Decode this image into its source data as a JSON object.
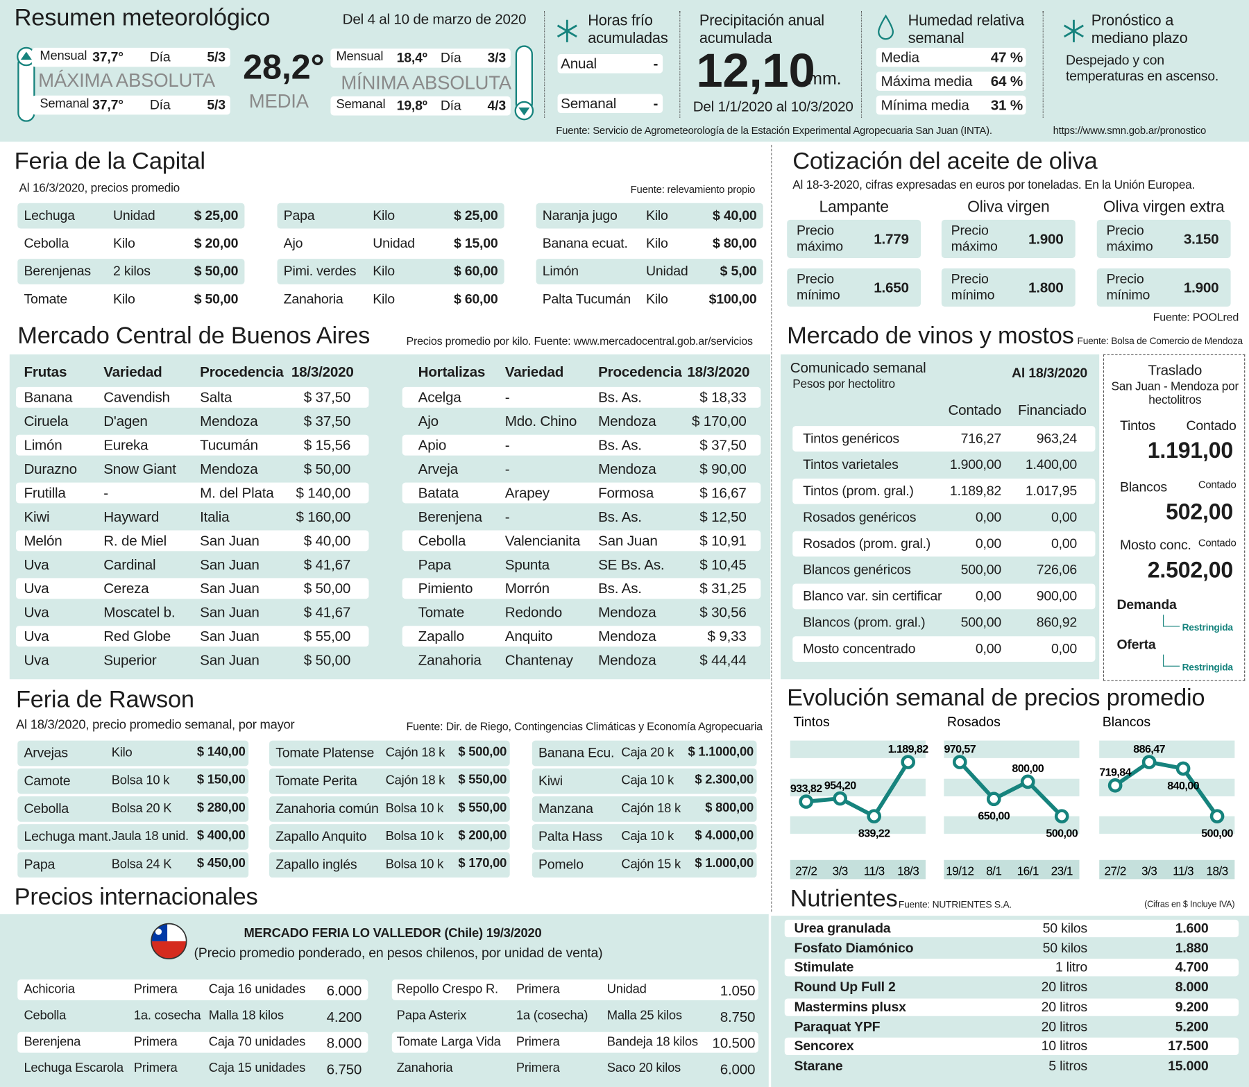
{
  "weather": {
    "title": "Resumen meteorológico",
    "period": "Del 4 al 10 de marzo de 2020",
    "maximum": {
      "label": "MÁXIMA ABSOLUTA",
      "rows": [
        [
          "Mensual",
          "37,7°",
          "Día",
          "5/3"
        ],
        [
          "Semanal",
          "37,7°",
          "Día",
          "5/3"
        ]
      ]
    },
    "mean": {
      "value": "28,2°",
      "label": "MEDIA"
    },
    "minimum": {
      "label": "MÍNIMA ABSOLUTA",
      "rows": [
        [
          "Mensual",
          "18,4º",
          "Día",
          "3/3"
        ],
        [
          "Semanal",
          "19,8º",
          "Día",
          "4/3"
        ]
      ]
    },
    "cold_hours": {
      "title": "Horas frío acumuladas",
      "rows": [
        [
          "Anual",
          "-"
        ],
        [
          "Semanal",
          "-"
        ]
      ]
    },
    "rain": {
      "title": "Precipitación anual acumulada",
      "value": "12,10",
      "unit": "mm.",
      "period": "Del 1/1/2020 al 10/3/2020"
    },
    "humidity": {
      "title": "Humedad relativa semanal",
      "rows": [
        [
          "Media",
          "47 %"
        ],
        [
          "Máxima media",
          "64 %"
        ],
        [
          "Mínima media",
          "31 %"
        ]
      ]
    },
    "forecast": {
      "title": "Pronóstico a mediano plazo",
      "text": "Despejado y con temperaturas en ascenso."
    },
    "source": "Fuente: Servicio de Agrometeorología de la Estación Experimental Agropecuaria San Juan (INTA).",
    "forecast_source": "https://www.smn.gob.ar/pronostico"
  },
  "feria_capital": {
    "title": "Feria de la Capital",
    "subtitle": "Al 16/3/2020, precios promedio",
    "source": "Fuente: relevamiento propio",
    "columns": [
      [
        [
          "Lechuga",
          "Unidad",
          "$ 25,00"
        ],
        [
          "Cebolla",
          "Kilo",
          "$ 20,00"
        ],
        [
          "Berenjenas",
          "2 kilos",
          "$ 50,00"
        ],
        [
          "Tomate",
          "Kilo",
          "$ 50,00"
        ]
      ],
      [
        [
          "Papa",
          "Kilo",
          "$ 25,00"
        ],
        [
          "Ajo",
          "Unidad",
          "$ 15,00"
        ],
        [
          "Pimi. verdes",
          "Kilo",
          "$ 60,00"
        ],
        [
          "Zanahoria",
          "Kilo",
          "$ 60,00"
        ]
      ],
      [
        [
          "Naranja jugo",
          "Kilo",
          "$ 40,00"
        ],
        [
          "Banana ecuat.",
          "Kilo",
          "$ 80,00"
        ],
        [
          "Limón",
          "Unidad",
          "$ 5,00"
        ],
        [
          "Palta Tucumán",
          "Kilo",
          "$100,00"
        ]
      ]
    ]
  },
  "olive_oil": {
    "title": "Cotización del aceite de oliva",
    "subtitle": "Al 18-3-2020, cifras expresadas en euros por toneladas. En la Unión Europea.",
    "groups": [
      {
        "name": "Lampante",
        "max_label": "Precio máximo",
        "max": "1.779",
        "min_label": "Precio mínimo",
        "min": "1.650"
      },
      {
        "name": "Oliva virgen",
        "max_label": "Precio máximo",
        "max": "1.900",
        "min_label": "Precio mínimo",
        "min": "1.800"
      },
      {
        "name": "Oliva virgen extra",
        "max_label": "Precio máximo",
        "max": "3.150",
        "min_label": "Precio mínimo",
        "min": "1.900"
      }
    ],
    "source": "Fuente: POOLred"
  },
  "mercado_central": {
    "title": "Mercado Central de Buenos Aires",
    "source": "Precios promedio por kilo. Fuente: www.mercadocentral.gob.ar/servicios",
    "fruits": {
      "header": [
        "Frutas",
        "Variedad",
        "Procedencia",
        "18/3/2020"
      ],
      "rows": [
        [
          "Banana",
          "Cavendish",
          "Salta",
          "$ 37,50"
        ],
        [
          "Ciruela",
          "D'agen",
          "Mendoza",
          "$ 37,50"
        ],
        [
          "Limón",
          "Eureka",
          "Tucumán",
          "$ 15,56"
        ],
        [
          "Durazno",
          "Snow Giant",
          "Mendoza",
          "$ 50,00"
        ],
        [
          "Frutilla",
          "-",
          "M. del Plata",
          "$ 140,00"
        ],
        [
          "Kiwi",
          "Hayward",
          "Italia",
          "$ 160,00"
        ],
        [
          "Melón",
          "R. de Miel",
          "San Juan",
          "$ 40,00"
        ],
        [
          "Uva",
          "Cardinal",
          "San Juan",
          "$ 41,67"
        ],
        [
          "Uva",
          "Cereza",
          "San Juan",
          "$ 50,00"
        ],
        [
          "Uva",
          "Moscatel b.",
          "San Juan",
          "$ 41,67"
        ],
        [
          "Uva",
          "Red Globe",
          "San Juan",
          "$ 55,00"
        ],
        [
          "Uva",
          "Superior",
          "San Juan",
          "$ 50,00"
        ]
      ]
    },
    "vegetables": {
      "header": [
        "Hortalizas",
        "Variedad",
        "Procedencia",
        "18/3/2020"
      ],
      "rows": [
        [
          "Acelga",
          "-",
          "Bs. As.",
          "$ 18,33"
        ],
        [
          "Ajo",
          "Mdo. Chino",
          "Mendoza",
          "$ 170,00"
        ],
        [
          "Apio",
          "-",
          "Bs. As.",
          "$ 37,50"
        ],
        [
          "Arveja",
          "-",
          "Mendoza",
          "$ 90,00"
        ],
        [
          "Batata",
          "Arapey",
          "Formosa",
          "$ 16,67"
        ],
        [
          "Berenjena",
          "-",
          "Bs. As.",
          "$ 12,50"
        ],
        [
          "Cebolla",
          "Valencianita",
          "San Juan",
          "$ 10,91"
        ],
        [
          "Papa",
          "Spunta",
          "SE Bs. As.",
          "$ 10,45"
        ],
        [
          "Pimiento",
          "Morrón",
          "Bs. As.",
          "$ 31,25"
        ],
        [
          "Tomate",
          "Redondo",
          "Mendoza",
          "$ 30,56"
        ],
        [
          "Zapallo",
          "Anquito",
          "Mendoza",
          "$ 9,33"
        ],
        [
          "Zanahoria",
          "Chantenay",
          "Mendoza",
          "$ 44,44"
        ]
      ]
    }
  },
  "wines": {
    "title": "Mercado de vinos y mostos",
    "source": "Fuente: Bolsa de Comercio de Mendoza",
    "table": {
      "title": "Comunicado semanal",
      "subtitle": "Pesos por hectolitro",
      "date": "Al 18/3/2020",
      "columns": [
        "Contado",
        "Financiado"
      ],
      "rows": [
        [
          "Tintos genéricos",
          "716,27",
          "963,24"
        ],
        [
          "Tintos varietales",
          "1.900,00",
          "1.400,00"
        ],
        [
          "Tintos (prom. gral.)",
          "1.189,82",
          "1.017,95"
        ],
        [
          "Rosados genéricos",
          "0,00",
          "0,00"
        ],
        [
          "Rosados (prom. gral.)",
          "0,00",
          "0,00"
        ],
        [
          "Blancos genéricos",
          "500,00",
          "726,06"
        ],
        [
          "Blanco var. sin certificar",
          "0,00",
          "900,00"
        ],
        [
          "Blancos (prom. gral.)",
          "500,00",
          "860,92"
        ],
        [
          "Mosto concentrado",
          "0,00",
          "0,00"
        ]
      ]
    },
    "transfer": {
      "title": "Traslado",
      "subtitle": "San Juan - Mendoza por hectolitros",
      "items": [
        {
          "name": "Tintos",
          "kind": "Contado",
          "value": "1.191,00"
        },
        {
          "name": "Blancos",
          "kind": "Contado",
          "value": "502,00"
        },
        {
          "name": "Mosto conc.",
          "kind": "Contado",
          "value": "2.502,00"
        }
      ],
      "demand": {
        "label": "Demanda",
        "value": "Restringida"
      },
      "offer": {
        "label": "Oferta",
        "value": "Restringida"
      }
    }
  },
  "rawson": {
    "title": "Feria de Rawson",
    "subtitle": "Al 18/3/2020, precio promedio semanal, por mayor",
    "source": "Fuente: Dir. de Riego, Contingencias Climáticas y Economía Agropecuaria",
    "columns": [
      [
        [
          "Arvejas",
          "Kilo",
          "$ 140,00"
        ],
        [
          "Camote",
          "Bolsa 10 k",
          "$ 150,00"
        ],
        [
          "Cebolla",
          "Bolsa 20 K",
          "$ 280,00"
        ],
        [
          "Lechuga mant.",
          "Jaula 18 unid.",
          "$ 400,00"
        ],
        [
          "Papa",
          "Bolsa 24 K",
          "$ 450,00"
        ]
      ],
      [
        [
          "Tomate Platense",
          "Cajón 18 k",
          "$ 500,00"
        ],
        [
          "Tomate Perita",
          "Cajón 18 k",
          "$ 550,00"
        ],
        [
          "Zanahoria común",
          "Bolsa 10 k",
          "$ 550,00"
        ],
        [
          "Zapallo Anquito",
          "Bolsa 10 k",
          "$ 200,00"
        ],
        [
          "Zapallo inglés",
          "Bolsa 10 k",
          "$ 170,00"
        ]
      ],
      [
        [
          "Banana Ecu.",
          "Caja 20 k",
          "$ 1.1000,00"
        ],
        [
          "Kiwi",
          "Caja 10 k",
          "$ 2.300,00"
        ],
        [
          "Manzana",
          "Cajón 18 k",
          "$ 800,00"
        ],
        [
          "Palta Hass",
          "Caja 10 k",
          "$ 4.000,00"
        ],
        [
          "Pomelo",
          "Cajón 15 k",
          "$ 1.000,00"
        ]
      ]
    ]
  },
  "evolution": {
    "title": "Evolución semanal de precios promedio"
  },
  "chart_data": [
    {
      "type": "line",
      "title": "Tintos",
      "color": "#16837d",
      "categories": [
        "27/2",
        "3/3",
        "11/3",
        "18/3"
      ],
      "values": [
        933.82,
        954.2,
        839.22,
        1189.82
      ],
      "value_labels": [
        "933,82",
        "954,20",
        "839,22",
        "1.189,82"
      ]
    },
    {
      "type": "line",
      "title": "Rosados",
      "color": "#16837d",
      "categories": [
        "19/12",
        "8/1",
        "16/1",
        "23/1"
      ],
      "values": [
        970.57,
        650.0,
        800.0,
        500.0
      ],
      "value_labels": [
        "970,57",
        "650,00",
        "800,00",
        "500,00"
      ]
    },
    {
      "type": "line",
      "title": "Blancos",
      "color": "#16837d",
      "categories": [
        "27/2",
        "3/3",
        "11/3",
        "18/3"
      ],
      "values": [
        719.84,
        886.47,
        840.0,
        500.0
      ],
      "value_labels": [
        "719,84",
        "886,47",
        "840,00",
        "500,00"
      ]
    }
  ],
  "international": {
    "title": "Precios internacionales",
    "market": "MERCADO FERIA LO VALLEDOR (Chile) 19/3/2020",
    "note": "(Precio promedio ponderado, en pesos chilenos, por unidad de venta)",
    "columns": [
      [
        [
          "Achicoria",
          "Primera",
          "Caja 16 unidades",
          "6.000"
        ],
        [
          "Cebolla",
          "1a. cosecha",
          "Malla 18 kilos",
          "4.200"
        ],
        [
          "Berenjena",
          "Primera",
          "Caja 70 unidades",
          "8.000"
        ],
        [
          "Lechuga Escarola",
          "Primera",
          "Caja 15 unidades",
          "6.750"
        ]
      ],
      [
        [
          "Repollo Crespo R.",
          "Primera",
          "Unidad",
          "1.050"
        ],
        [
          "Papa Asterix",
          "1a (cosecha)",
          "Malla 25 kilos",
          "8.750"
        ],
        [
          "Tomate Larga Vida",
          "Primera",
          "Bandeja 18 kilos",
          "10.500"
        ],
        [
          "Zanahoria",
          "Primera",
          "Saco 20 kilos",
          "6.000"
        ]
      ]
    ]
  },
  "nutrients": {
    "title": "Nutrientes",
    "source": "Fuente: NUTRIENTES S.A.",
    "note": "(Cifras en $ Incluye IVA)",
    "rows": [
      [
        "Urea granulada",
        "50 kilos",
        "1.600"
      ],
      [
        "Fosfato Diamónico",
        "50 kilos",
        "1.880"
      ],
      [
        "Stimulate",
        "1 litro",
        "4.700"
      ],
      [
        "Round Up Full 2",
        "20 litros",
        "8.000"
      ],
      [
        "Mastermins plusx",
        "20 litros",
        "9.200"
      ],
      [
        "Paraquat YPF",
        "20 litros",
        "5.200"
      ],
      [
        "Sencorex",
        "10 litros",
        "17.500"
      ],
      [
        "Starane",
        "5 litros",
        "15.000"
      ]
    ]
  }
}
